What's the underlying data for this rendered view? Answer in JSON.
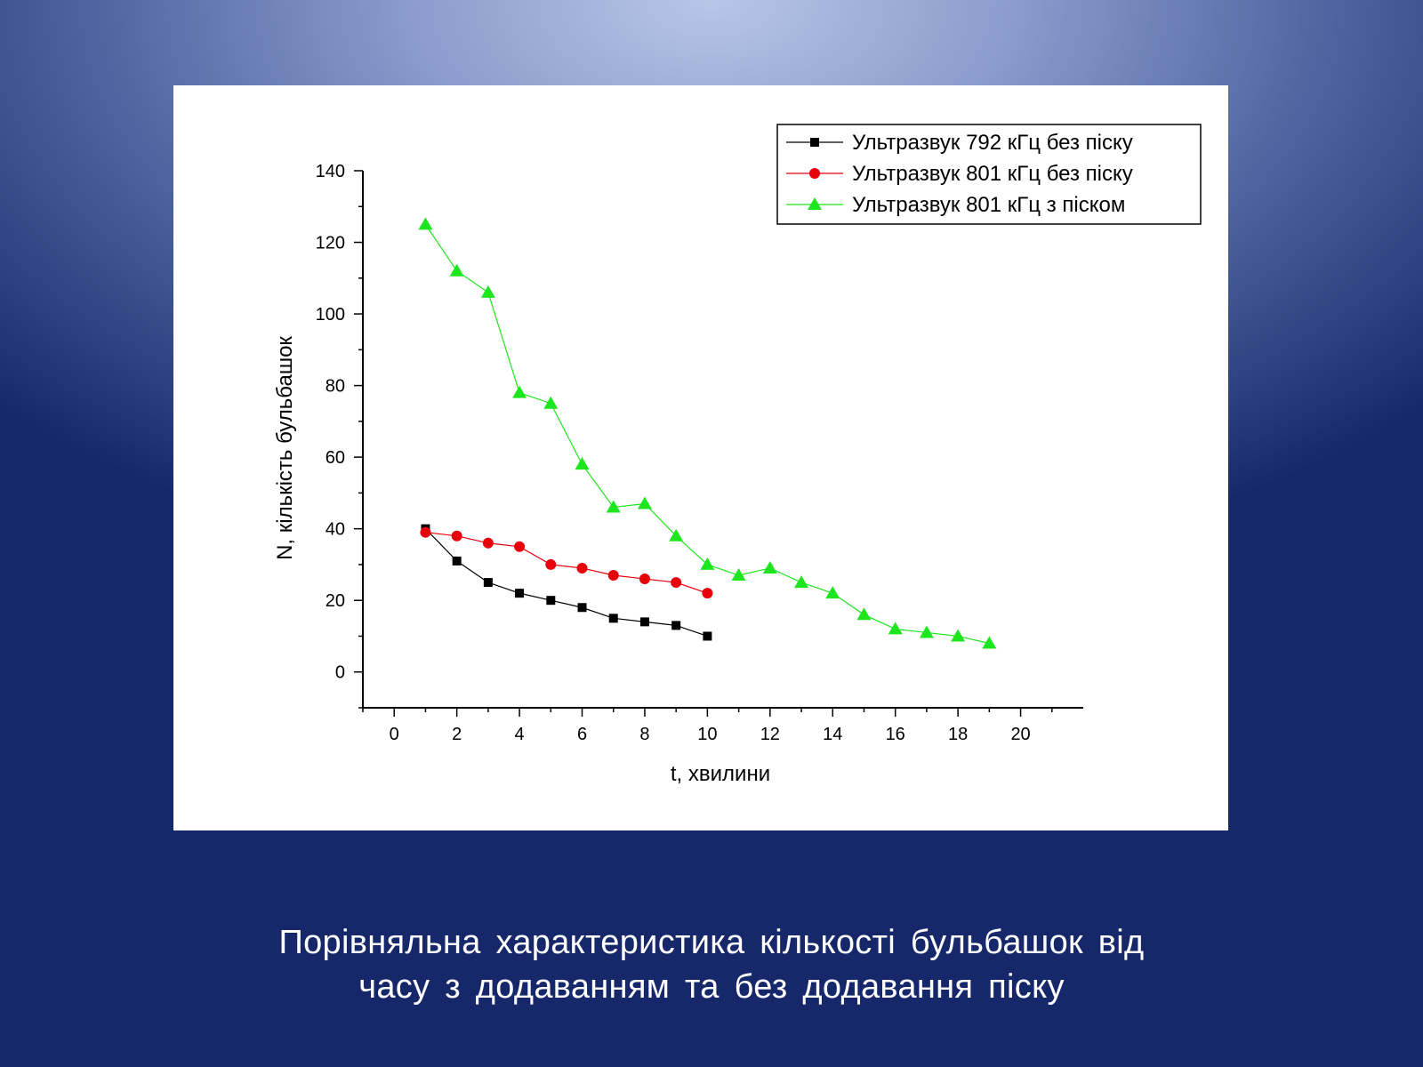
{
  "chart_data": {
    "type": "line",
    "xlabel": "t, хвилини",
    "ylabel": "N, кількість бульбашок",
    "xlim": [
      -1,
      22
    ],
    "ylim": [
      -10,
      140
    ],
    "xticks": [
      0,
      2,
      4,
      6,
      8,
      10,
      12,
      14,
      16,
      18,
      20
    ],
    "yticks": [
      0,
      20,
      40,
      60,
      80,
      100,
      120,
      140
    ],
    "legend_position": "top-right",
    "series": [
      {
        "name": "Ультразвук 792 кГц без піску",
        "marker": "square",
        "color": "#000000",
        "x": [
          1,
          2,
          3,
          4,
          5,
          6,
          7,
          8,
          9,
          10
        ],
        "y": [
          40,
          31,
          25,
          22,
          20,
          18,
          15,
          14,
          13,
          10
        ]
      },
      {
        "name": "Ультразвук 801 кГц без піску",
        "marker": "circle",
        "color": "#e8000b",
        "x": [
          1,
          2,
          3,
          4,
          5,
          6,
          7,
          8,
          9,
          10
        ],
        "y": [
          39,
          38,
          36,
          35,
          30,
          29,
          27,
          26,
          25,
          22
        ]
      },
      {
        "name": "Ультразвук 801 кГц з піском",
        "marker": "triangle",
        "color": "#1ee61e",
        "x": [
          1,
          2,
          3,
          4,
          5,
          6,
          7,
          8,
          9,
          10,
          11,
          12,
          13,
          14,
          15,
          16,
          17,
          18,
          19
        ],
        "y": [
          125,
          112,
          106,
          78,
          75,
          58,
          46,
          47,
          38,
          30,
          27,
          29,
          25,
          22,
          16,
          12,
          11,
          10,
          8
        ]
      }
    ]
  },
  "caption": {
    "line1": "Порівняльна характеристика кількості бульбашок від",
    "line2": "часу з додаванням та без додавання піску"
  }
}
